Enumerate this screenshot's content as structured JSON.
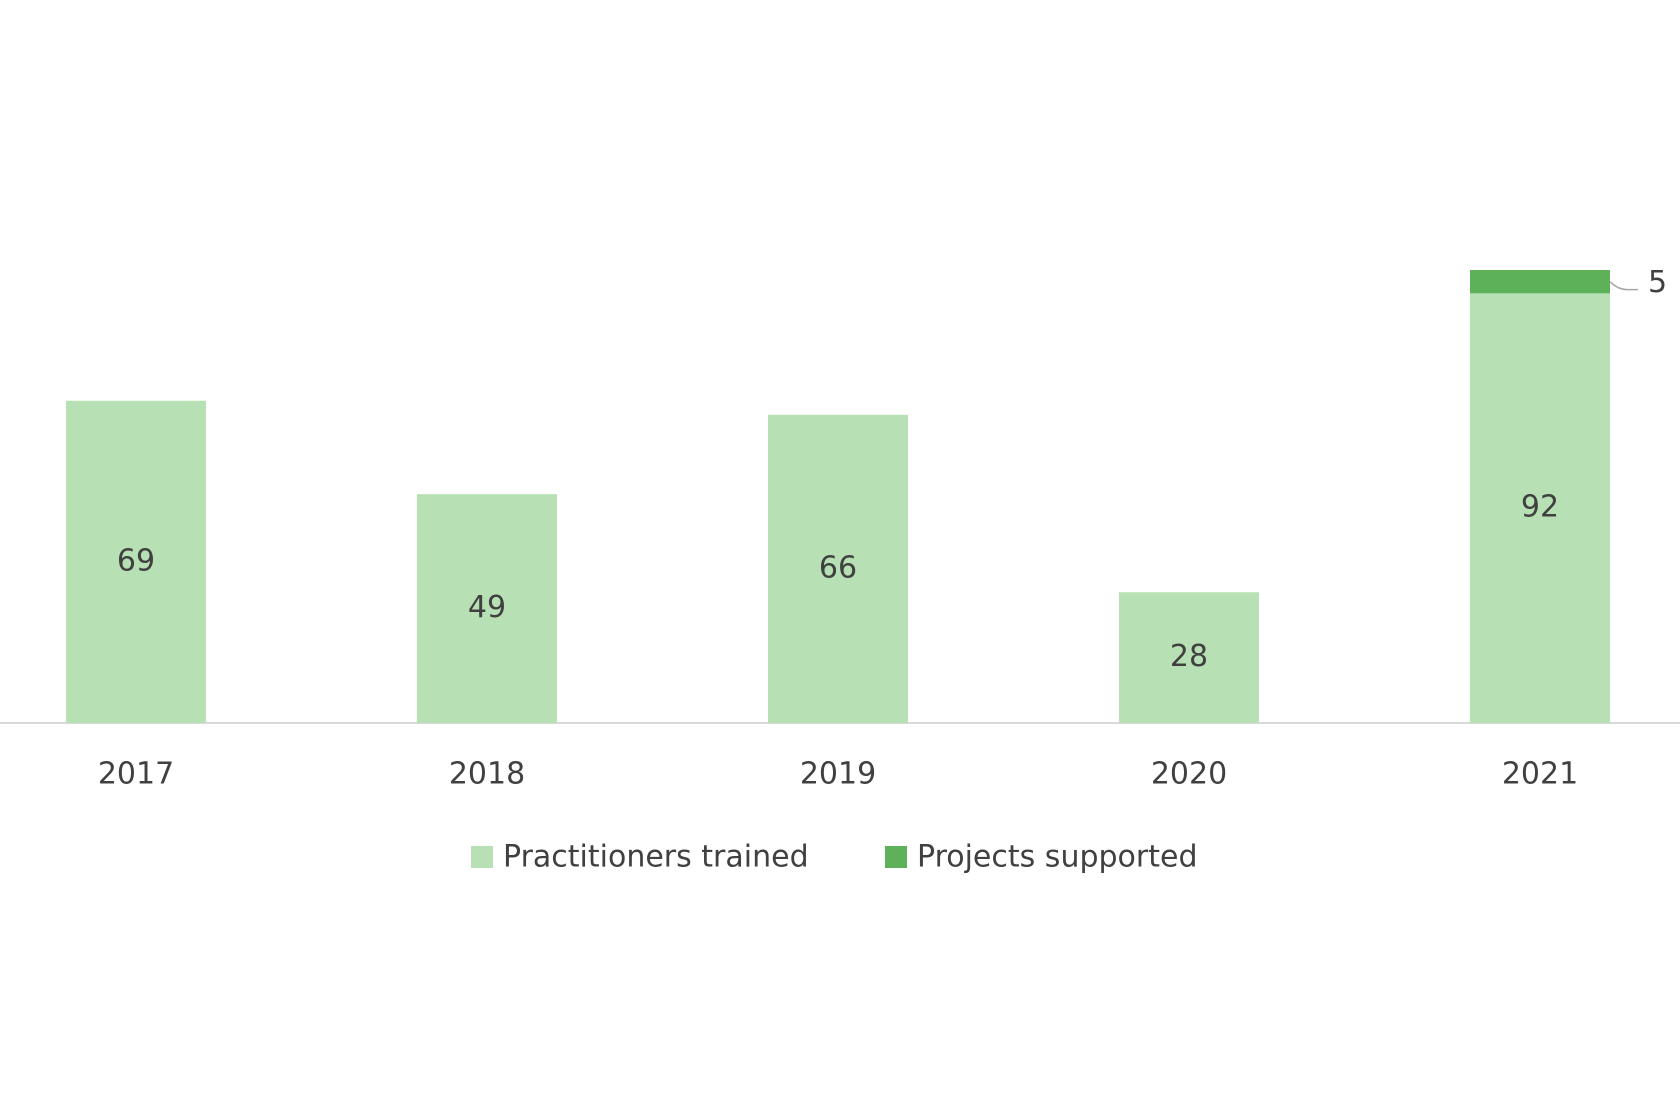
{
  "chart_data": {
    "type": "bar",
    "stacked": true,
    "categories": [
      "2017",
      "2018",
      "2019",
      "2020",
      "2021"
    ],
    "series": [
      {
        "name": "Practitioners trained",
        "color": "#b7e1b4",
        "values": [
          69,
          49,
          66,
          28,
          92
        ]
      },
      {
        "name": "Projects supported",
        "color": "#5cb159",
        "values": [
          null,
          null,
          null,
          null,
          5
        ]
      }
    ],
    "legend": "bottom"
  }
}
